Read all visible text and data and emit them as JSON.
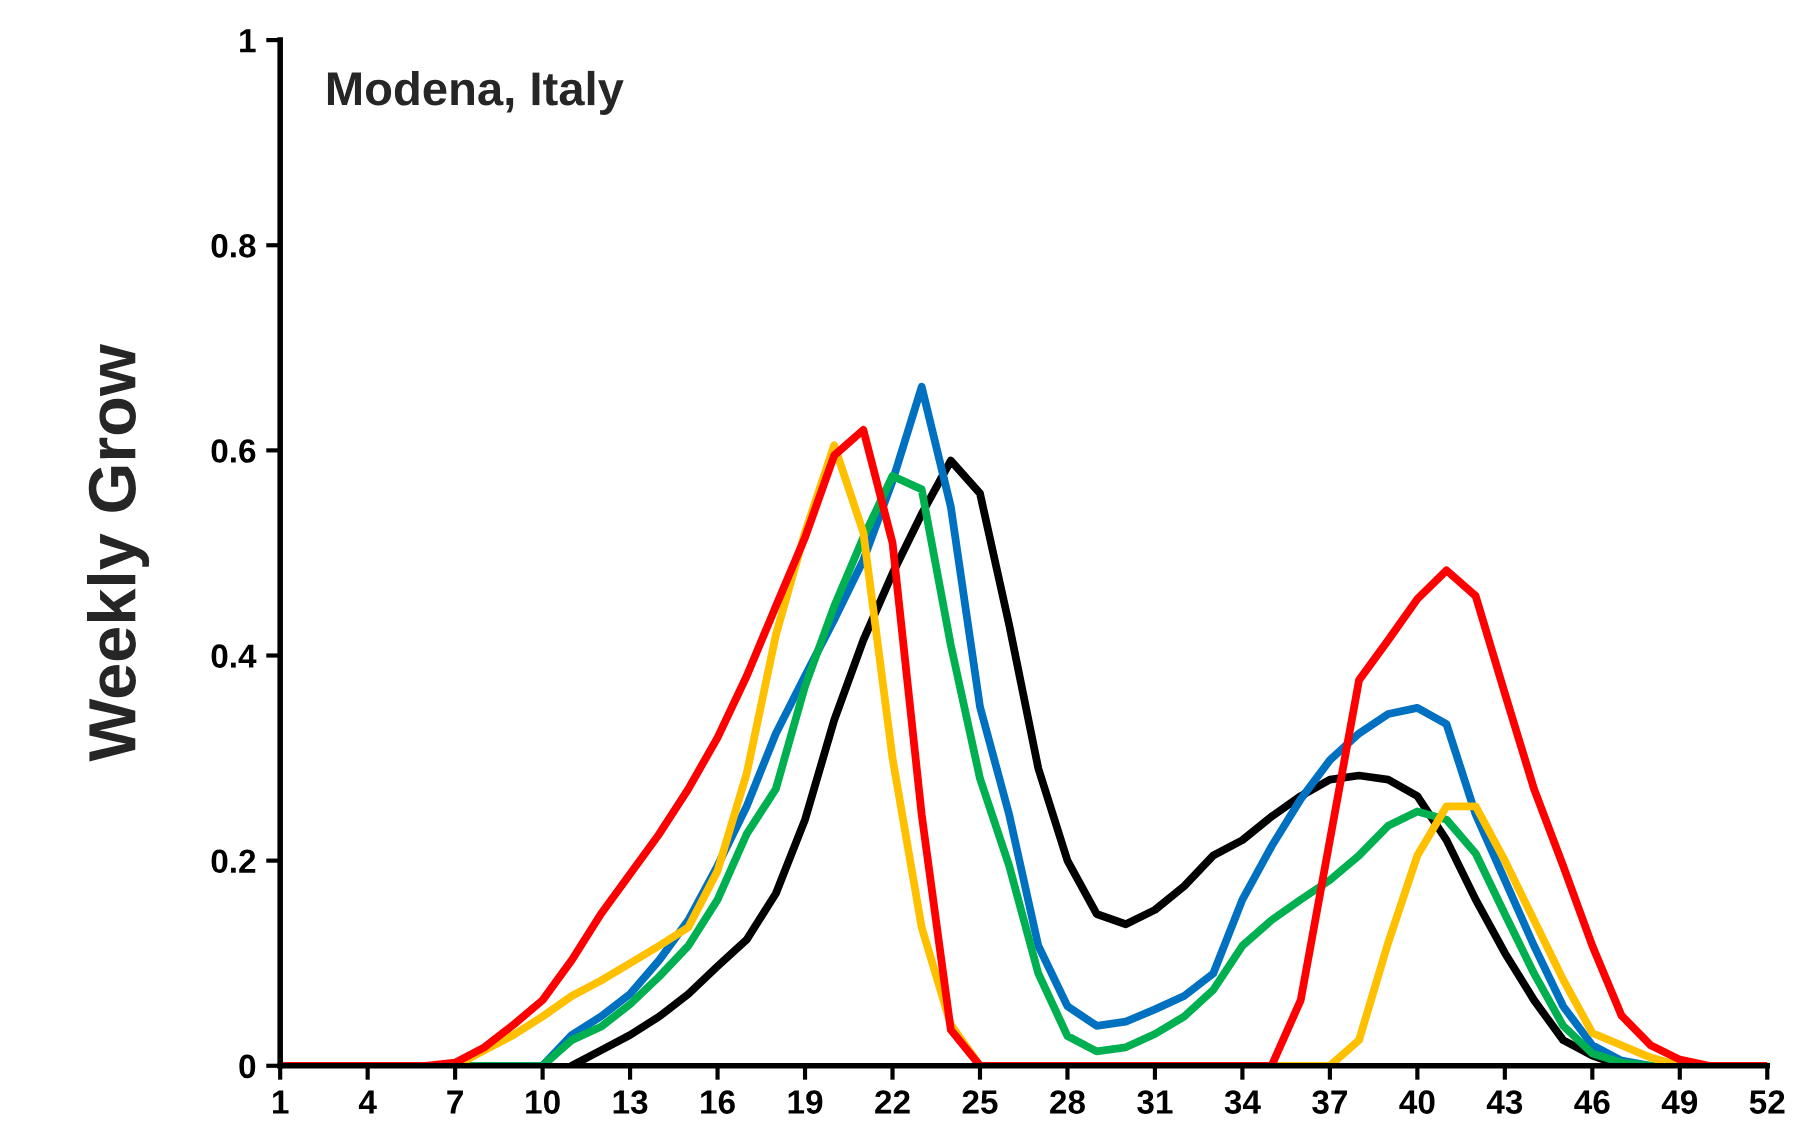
{
  "chart_data": {
    "type": "line",
    "ylabel": "Weekly Grow",
    "annotations": [
      "Modena, Italy"
    ],
    "x": [
      1,
      2,
      3,
      4,
      5,
      6,
      7,
      8,
      9,
      10,
      11,
      12,
      13,
      14,
      15,
      16,
      17,
      18,
      19,
      20,
      21,
      22,
      23,
      24,
      25,
      26,
      27,
      28,
      29,
      30,
      31,
      32,
      33,
      34,
      35,
      36,
      37,
      38,
      39,
      40,
      41,
      42,
      43,
      44,
      45,
      46,
      47,
      48,
      49,
      50,
      51,
      52
    ],
    "series": [
      {
        "color": "#000000",
        "values": [
          null,
          null,
          null,
          null,
          null,
          null,
          null,
          null,
          null,
          null,
          0,
          0.015,
          0.03,
          0.048,
          0.07,
          0.097,
          0.123,
          0.168,
          0.24,
          0.337,
          0.415,
          0.48,
          0.538,
          0.59,
          0.558,
          0.43,
          0.29,
          0.2,
          0.148,
          0.138,
          0.152,
          0.175,
          0.205,
          0.22,
          0.243,
          0.263,
          0.279,
          0.283,
          0.279,
          0.263,
          0.22,
          0.162,
          0.11,
          0.064,
          0.025,
          0.01,
          0,
          null,
          null,
          null,
          null,
          null
        ]
      },
      {
        "color": "#0070c0",
        "values": [
          null,
          null,
          null,
          null,
          null,
          null,
          null,
          null,
          0,
          0,
          0.03,
          0.048,
          0.07,
          0.103,
          0.142,
          0.195,
          0.253,
          0.324,
          0.38,
          0.435,
          0.493,
          0.57,
          0.662,
          0.545,
          0.35,
          0.245,
          0.117,
          0.058,
          0.039,
          0.043,
          0.055,
          0.068,
          0.09,
          0.162,
          0.214,
          0.26,
          0.298,
          0.324,
          0.343,
          0.349,
          0.333,
          0.245,
          0.181,
          0.117,
          0.058,
          0.02,
          0.005,
          0,
          0,
          null,
          null,
          null
        ]
      },
      {
        "color": "#00b050",
        "values": [
          null,
          null,
          null,
          null,
          null,
          0,
          0,
          0,
          0,
          0,
          0.025,
          0.038,
          0.06,
          0.087,
          0.117,
          0.162,
          0.226,
          0.27,
          0.37,
          0.448,
          0.515,
          0.575,
          0.562,
          0.41,
          0.28,
          0.195,
          0.09,
          0.029,
          0.014,
          0.018,
          0.031,
          0.048,
          0.074,
          0.117,
          0.142,
          0.162,
          0.181,
          0.205,
          0.234,
          0.248,
          0.24,
          0.207,
          0.148,
          0.09,
          0.039,
          0.012,
          0.003,
          0,
          0,
          null,
          null,
          null
        ]
      },
      {
        "color": "#ffc000",
        "values": [
          null,
          null,
          null,
          null,
          null,
          null,
          0,
          0.015,
          0.03,
          0.048,
          0.068,
          0.083,
          0.1,
          0.117,
          0.135,
          0.19,
          0.285,
          0.42,
          0.52,
          0.605,
          0.52,
          0.3,
          0.135,
          0.04,
          0,
          null,
          null,
          null,
          null,
          null,
          null,
          null,
          null,
          null,
          0,
          0,
          0,
          0.025,
          0.12,
          0.205,
          0.253,
          0.253,
          0.2,
          0.142,
          0.084,
          0.032,
          0.02,
          0.008,
          0,
          null,
          null,
          null
        ]
      },
      {
        "color": "#ff0000",
        "values": [
          0,
          0,
          0,
          0,
          0,
          0,
          0.003,
          0.018,
          0.04,
          0.064,
          0.103,
          0.148,
          0.187,
          0.226,
          0.27,
          0.32,
          0.38,
          0.448,
          0.515,
          0.595,
          0.62,
          0.51,
          0.245,
          0.035,
          0,
          0,
          0,
          0,
          0,
          0,
          0,
          0,
          0,
          0,
          0,
          0.064,
          0.22,
          0.376,
          0.415,
          0.455,
          0.483,
          0.458,
          0.363,
          0.27,
          0.195,
          0.117,
          0.049,
          0.02,
          0.006,
          0,
          0,
          0
        ]
      }
    ],
    "xlim": [
      1,
      52
    ],
    "xticks": [
      1,
      4,
      7,
      10,
      13,
      16,
      19,
      22,
      25,
      28,
      31,
      34,
      37,
      40,
      43,
      46,
      49,
      52
    ],
    "ylim": [
      0,
      1
    ],
    "yticks": [
      0,
      0.2,
      0.4,
      0.6,
      0.8,
      1
    ],
    "grid": false,
    "legend": false,
    "marker": "none",
    "line_style": "solid"
  }
}
